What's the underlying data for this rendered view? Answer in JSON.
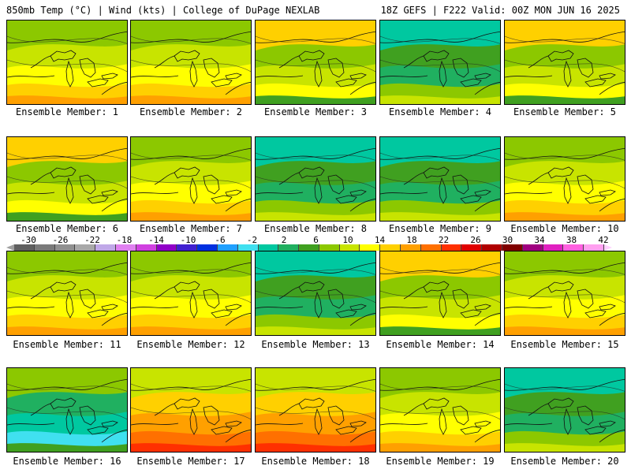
{
  "header": {
    "left_title": "850mb Temp (°C) | Wind (kts) | College of DuPage NEXLAB",
    "right_title": "18Z GEFS | F222 Valid: 00Z MON JUN 16 2025"
  },
  "colorbar": {
    "labels": [
      "-30",
      "-26",
      "-22",
      "-18",
      "-14",
      "-10",
      "-6",
      "-2",
      "2",
      "6",
      "10",
      "14",
      "18",
      "22",
      "26",
      "30",
      "34",
      "38",
      "42"
    ],
    "colors": [
      "#606060",
      "#7a7a7a",
      "#909090",
      "#a8a8a8",
      "#c0a8e8",
      "#e080f0",
      "#d040e0",
      "#9000c8",
      "#4020d0",
      "#0030e0",
      "#20a0ff",
      "#40e0f0",
      "#00c8a0",
      "#20b060",
      "#40a020",
      "#8cc800",
      "#c8e400",
      "#ffff00",
      "#ffd000",
      "#ffa000",
      "#ff7000",
      "#ff3000",
      "#e00000",
      "#b00000",
      "#800000",
      "#a00080",
      "#e020c0",
      "#ff60e0",
      "#ffa0f0"
    ]
  },
  "panels": [
    {
      "label": "Ensemble Member: 1",
      "theme": "warm"
    },
    {
      "label": "Ensemble Member: 2",
      "theme": "warm"
    },
    {
      "label": "Ensemble Member: 3",
      "theme": "mid"
    },
    {
      "label": "Ensemble Member: 4",
      "theme": "cool"
    },
    {
      "label": "Ensemble Member: 5",
      "theme": "mid"
    },
    {
      "label": "Ensemble Member: 6",
      "theme": "mid"
    },
    {
      "label": "Ensemble Member: 7",
      "theme": "warm"
    },
    {
      "label": "Ensemble Member: 8",
      "theme": "cool"
    },
    {
      "label": "Ensemble Member: 9",
      "theme": "cool"
    },
    {
      "label": "Ensemble Member: 10",
      "theme": "warm"
    },
    {
      "label": "Ensemble Member: 11",
      "theme": "warm"
    },
    {
      "label": "Ensemble Member: 12",
      "theme": "warm"
    },
    {
      "label": "Ensemble Member: 13",
      "theme": "cool"
    },
    {
      "label": "Ensemble Member: 14",
      "theme": "mid"
    },
    {
      "label": "Ensemble Member: 15",
      "theme": "warm"
    },
    {
      "label": "Ensemble Member: 16",
      "theme": "cold"
    },
    {
      "label": "Ensemble Member: 17",
      "theme": "hot"
    },
    {
      "label": "Ensemble Member: 18",
      "theme": "hot"
    },
    {
      "label": "Ensemble Member: 19",
      "theme": "warm"
    },
    {
      "label": "Ensemble Member: 20",
      "theme": "cool"
    }
  ]
}
